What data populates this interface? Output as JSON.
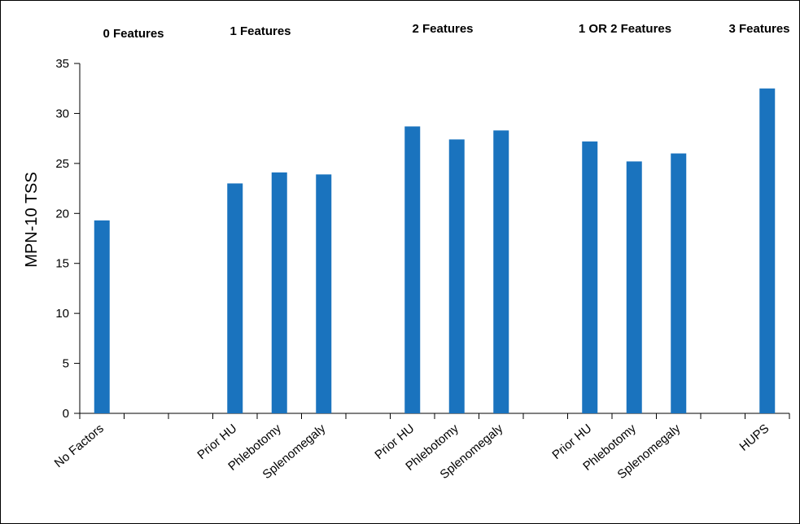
{
  "chart_data": {
    "type": "bar",
    "title": "",
    "xlabel": "",
    "ylabel": "MPN-10 TSS",
    "ylim": [
      0,
      35
    ],
    "yticks": [
      0,
      5,
      10,
      15,
      20,
      25,
      30,
      35
    ],
    "grid": false,
    "bar_color": "#1a73be",
    "group_labels": [
      "0 Features",
      "1 Features",
      "2 Features",
      "1 OR 2 Features",
      "3 Features"
    ],
    "categories": [
      "No Factors",
      "",
      "",
      "Prior HU",
      "Phlebotomy",
      "Splenomegaly",
      "",
      "Prior HU",
      "Phlebotomy",
      "Splenomegaly",
      "",
      "Prior HU",
      "Phlebotomy",
      "Splenomegaly",
      "",
      "HUPS"
    ],
    "values": [
      19.3,
      null,
      null,
      23.0,
      24.1,
      23.9,
      null,
      28.7,
      27.4,
      28.3,
      null,
      27.2,
      25.2,
      26.0,
      null,
      32.5
    ]
  }
}
